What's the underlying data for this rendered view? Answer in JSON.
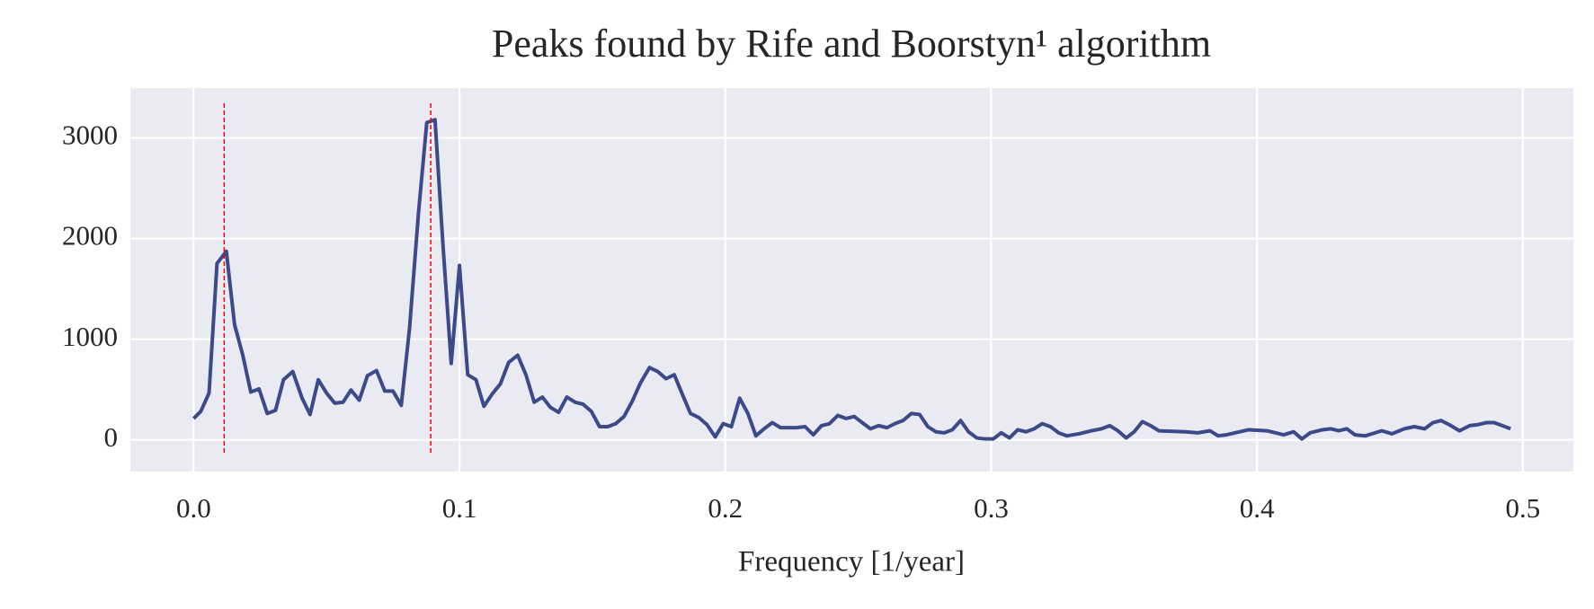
{
  "chart_data": {
    "type": "line",
    "title": "Peaks found by Rife and Boorstyn¹ algorithm",
    "x_label": "Frequency [1/year]",
    "color": "#3c4a8a",
    "x": [
      0,
      0.0027,
      0.0058,
      0.0088,
      0.0123,
      0.0154,
      0.0185,
      0.0215,
      0.0246,
      0.0277,
      0.0308,
      0.0338,
      0.0373,
      0.0408,
      0.0438,
      0.0469,
      0.05,
      0.0531,
      0.0562,
      0.0592,
      0.0623,
      0.0654,
      0.0688,
      0.0719,
      0.075,
      0.0781,
      0.0812,
      0.0846,
      0.0877,
      0.0908,
      0.0938,
      0.0969,
      0.1,
      0.1031,
      0.1062,
      0.1092,
      0.1123,
      0.1154,
      0.1185,
      0.1219,
      0.125,
      0.1281,
      0.1312,
      0.1342,
      0.1373,
      0.1404,
      0.1435,
      0.1465,
      0.1496,
      0.1527,
      0.1558,
      0.1588,
      0.1619,
      0.165,
      0.1681,
      0.1715,
      0.1746,
      0.1777,
      0.1808,
      0.1838,
      0.1869,
      0.19,
      0.1931,
      0.1962,
      0.1992,
      0.2023,
      0.2054,
      0.2085,
      0.2115,
      0.2146,
      0.2177,
      0.2208,
      0.2238,
      0.2269,
      0.23,
      0.2331,
      0.2362,
      0.2392,
      0.2423,
      0.2454,
      0.2485,
      0.2515,
      0.2546,
      0.2577,
      0.2608,
      0.2638,
      0.2669,
      0.27,
      0.2731,
      0.2762,
      0.2792,
      0.2823,
      0.2854,
      0.2885,
      0.2915,
      0.2946,
      0.2977,
      0.3008,
      0.3038,
      0.3069,
      0.31,
      0.3131,
      0.3162,
      0.3192,
      0.3223,
      0.3254,
      0.3285,
      0.3331,
      0.3377,
      0.3415,
      0.3446,
      0.3477,
      0.3508,
      0.3538,
      0.3569,
      0.36,
      0.3631,
      0.3731,
      0.3777,
      0.3823,
      0.3854,
      0.3885,
      0.3969,
      0.4038,
      0.41,
      0.4138,
      0.4169,
      0.42,
      0.4246,
      0.4277,
      0.4308,
      0.4338,
      0.4369,
      0.4408,
      0.4469,
      0.4508,
      0.4554,
      0.4592,
      0.4631,
      0.4662,
      0.4692,
      0.4723,
      0.4762,
      0.48,
      0.4831,
      0.4862,
      0.4892,
      0.4923,
      0.4954
    ],
    "values": [
      213,
      284,
      466,
      1753,
      1874,
      1145,
      841,
      476,
      507,
      263,
      294,
      598,
      679,
      415,
      253,
      598,
      466,
      365,
      375,
      496,
      395,
      638,
      689,
      486,
      486,
      344,
      1104,
      2259,
      3151,
      3181,
      1935,
      760,
      1733,
      648,
      598,
      334,
      456,
      557,
      770,
      841,
      648,
      375,
      426,
      324,
      274,
      426,
      375,
      355,
      284,
      132,
      132,
      162,
      233,
      385,
      567,
      719,
      679,
      608,
      648,
      456,
      263,
      223,
      152,
      30,
      162,
      132,
      415,
      263,
      41,
      111,
      172,
      122,
      122,
      122,
      132,
      51,
      142,
      162,
      243,
      213,
      233,
      172,
      111,
      142,
      122,
      162,
      193,
      263,
      253,
      132,
      81,
      71,
      101,
      193,
      81,
      20,
      10,
      10,
      71,
      20,
      101,
      81,
      111,
      162,
      132,
      71,
      41,
      61,
      91,
      111,
      142,
      91,
      20,
      81,
      182,
      142,
      91,
      81,
      71,
      91,
      41,
      51,
      101,
      91,
      51,
      81,
      10,
      71,
      101,
      111,
      91,
      111,
      51,
      41,
      91,
      61,
      111,
      132,
      111,
      172,
      193,
      152,
      91,
      142,
      152,
      172,
      172,
      142,
      111
    ],
    "peaks": [
      0.0115,
      0.0892
    ],
    "peak_color": "#ff0000",
    "xlim": [
      -0.0238,
      0.519
    ],
    "ylim": [
      -314,
      3495
    ],
    "xticks": [
      {
        "value": 0,
        "label": "0.0"
      },
      0.1,
      0.2,
      0.3,
      0.4,
      0.5
    ],
    "yticks": [
      0,
      1000,
      2000,
      3000
    ],
    "grid": true
  }
}
